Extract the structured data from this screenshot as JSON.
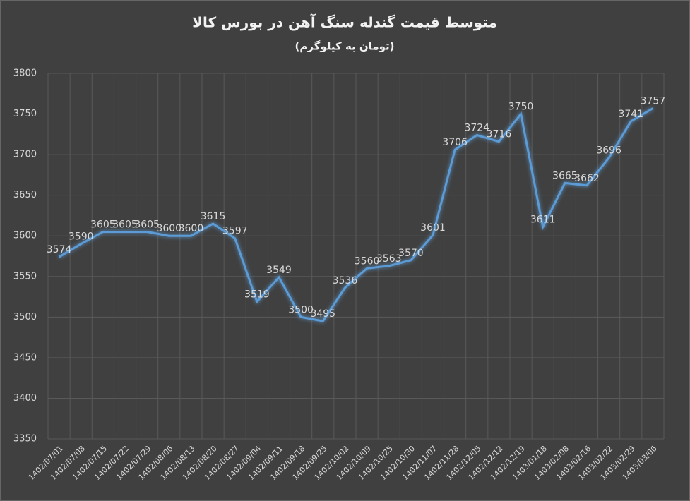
{
  "chart_data": {
    "type": "line",
    "title": "متوسط قیمت گندله سنگ آهن در بورس کالا",
    "subtitle": "(تومان به کیلوگرم)",
    "categories": [
      "1402/07/01",
      "1402/07/08",
      "1402/07/15",
      "1402/07/22",
      "1402/07/29",
      "1402/08/06",
      "1402/08/13",
      "1402/08/20",
      "1402/08/27",
      "1402/09/04",
      "1402/09/11",
      "1402/09/18",
      "1402/09/25",
      "1402/10/02",
      "1402/10/09",
      "1402/10/25",
      "1402/10/30",
      "1402/11/07",
      "1402/11/28",
      "1402/12/05",
      "1402/12/12",
      "1402/12/19",
      "1403/01/18",
      "1403/02/08",
      "1403/02/16",
      "1403/02/22",
      "1403/02/29",
      "1403/03/06"
    ],
    "values": [
      3574,
      3590,
      3605,
      3605,
      3605,
      3600,
      3600,
      3615,
      3597,
      3519,
      3549,
      3500,
      3495,
      3536,
      3560,
      3563,
      3570,
      3601,
      3706,
      3724,
      3716,
      3750,
      3611,
      3665,
      3662,
      3696,
      3741,
      3757
    ],
    "color": "#5b9bd5",
    "ylim": [
      3350,
      3800
    ],
    "yticks": [
      3350,
      3400,
      3450,
      3500,
      3550,
      3600,
      3650,
      3700,
      3750,
      3800
    ],
    "grid": true
  }
}
